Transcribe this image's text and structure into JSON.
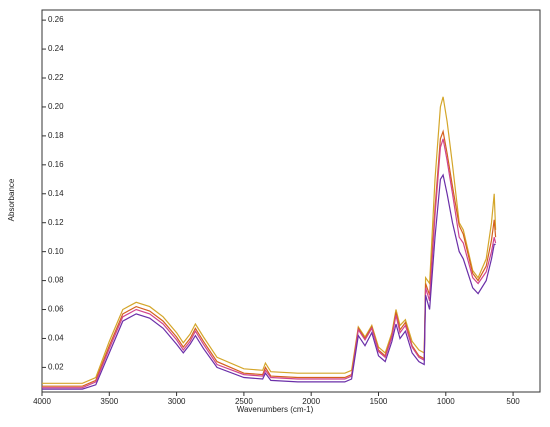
{
  "chart_data": {
    "type": "line",
    "xlabel": "Wavenumbers (cm-1)",
    "ylabel": "Absorbance",
    "xlim": [
      4000,
      300
    ],
    "ylim": [
      0.003,
      0.267
    ],
    "xticks": [
      4000,
      3500,
      3000,
      2500,
      2000,
      1500,
      1000,
      500
    ],
    "yticks": [
      0.02,
      0.04,
      0.06,
      0.08,
      {
        "value": 0.1,
        "label": "0.10"
      },
      0.12,
      0.14,
      0.16,
      0.18,
      {
        "value": 0.2,
        "label": "0.20"
      },
      0.22,
      0.24,
      0.26
    ],
    "x": [
      4000,
      3700,
      3600,
      3500,
      3400,
      3300,
      3200,
      3100,
      3000,
      2950,
      2900,
      2860,
      2800,
      2700,
      2500,
      2360,
      2340,
      2300,
      2100,
      1900,
      1750,
      1700,
      1650,
      1600,
      1550,
      1500,
      1450,
      1400,
      1370,
      1340,
      1300,
      1250,
      1200,
      1160,
      1150,
      1120,
      1080,
      1040,
      1020,
      990,
      950,
      900,
      870,
      800,
      760,
      700,
      660,
      640,
      630
    ],
    "series": [
      {
        "color": "#d4a62a",
        "values": [
          0.009,
          0.009,
          0.013,
          0.038,
          0.06,
          0.065,
          0.062,
          0.055,
          0.044,
          0.037,
          0.043,
          0.05,
          0.041,
          0.027,
          0.019,
          0.018,
          0.023,
          0.017,
          0.016,
          0.016,
          0.016,
          0.018,
          0.048,
          0.041,
          0.049,
          0.034,
          0.03,
          0.044,
          0.06,
          0.049,
          0.053,
          0.038,
          0.032,
          0.03,
          0.082,
          0.078,
          0.15,
          0.2,
          0.207,
          0.19,
          0.16,
          0.12,
          0.115,
          0.087,
          0.082,
          0.095,
          0.12,
          0.14,
          0.115
        ]
      },
      {
        "color": "#d4601e",
        "values": [
          0.007,
          0.007,
          0.011,
          0.035,
          0.057,
          0.062,
          0.059,
          0.052,
          0.041,
          0.034,
          0.04,
          0.047,
          0.038,
          0.024,
          0.016,
          0.015,
          0.02,
          0.014,
          0.013,
          0.013,
          0.013,
          0.015,
          0.047,
          0.04,
          0.048,
          0.032,
          0.028,
          0.042,
          0.058,
          0.046,
          0.051,
          0.035,
          0.028,
          0.026,
          0.078,
          0.07,
          0.13,
          0.178,
          0.183,
          0.168,
          0.145,
          0.118,
          0.112,
          0.085,
          0.08,
          0.09,
          0.108,
          0.122,
          0.11
        ]
      },
      {
        "color": "#d0458e",
        "values": [
          0.006,
          0.006,
          0.01,
          0.033,
          0.055,
          0.06,
          0.057,
          0.05,
          0.039,
          0.032,
          0.038,
          0.045,
          0.036,
          0.022,
          0.015,
          0.014,
          0.018,
          0.013,
          0.012,
          0.012,
          0.012,
          0.014,
          0.046,
          0.039,
          0.047,
          0.031,
          0.027,
          0.041,
          0.056,
          0.044,
          0.049,
          0.034,
          0.027,
          0.025,
          0.075,
          0.066,
          0.125,
          0.172,
          0.178,
          0.163,
          0.14,
          0.11,
          0.106,
          0.082,
          0.078,
          0.086,
          0.1,
          0.11,
          0.106
        ]
      },
      {
        "color": "#6a2fa8",
        "values": [
          0.005,
          0.005,
          0.008,
          0.03,
          0.052,
          0.057,
          0.054,
          0.047,
          0.036,
          0.03,
          0.036,
          0.042,
          0.033,
          0.02,
          0.013,
          0.012,
          0.016,
          0.011,
          0.01,
          0.01,
          0.01,
          0.012,
          0.042,
          0.035,
          0.044,
          0.028,
          0.024,
          0.038,
          0.05,
          0.04,
          0.045,
          0.03,
          0.024,
          0.022,
          0.07,
          0.06,
          0.11,
          0.15,
          0.153,
          0.14,
          0.12,
          0.1,
          0.095,
          0.075,
          0.071,
          0.08,
          0.095,
          0.105,
          0.105
        ]
      }
    ]
  }
}
